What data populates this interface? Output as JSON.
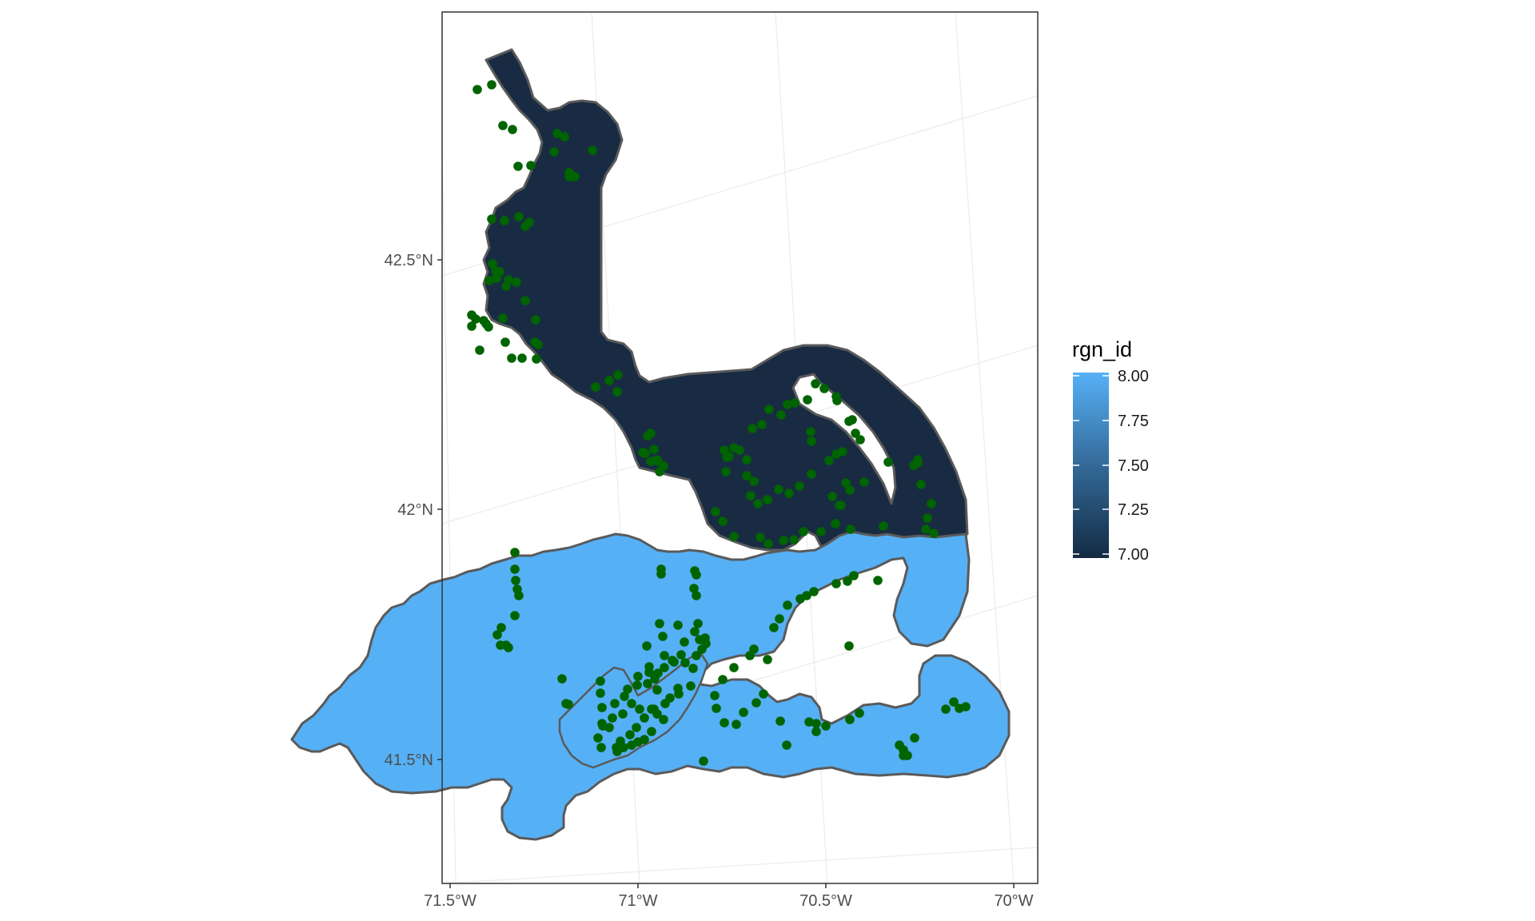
{
  "chart_data": {
    "type": "map",
    "x_tick_labels": [
      "71.5°W",
      "71°W",
      "70.5°W",
      "70°W"
    ],
    "y_tick_labels": [
      "42.5°N",
      "42°N",
      "41.5°N"
    ],
    "legend": {
      "title": "rgn_id",
      "type": "continuous colorbar",
      "placement": "right",
      "labels": [
        "8.00",
        "7.75",
        "7.50",
        "7.25",
        "7.00"
      ],
      "range": [
        7.0,
        8.0
      ],
      "low_color": "#132B43",
      "high_color": "#56B1F7"
    },
    "regions": [
      {
        "rgn_id": 7,
        "fill": "#182b43",
        "description_color": "dark navy"
      },
      {
        "rgn_id": 8,
        "fill": "#56b0f5",
        "description_color": "light blue"
      }
    ],
    "points_color": "#006400",
    "grid": true
  }
}
